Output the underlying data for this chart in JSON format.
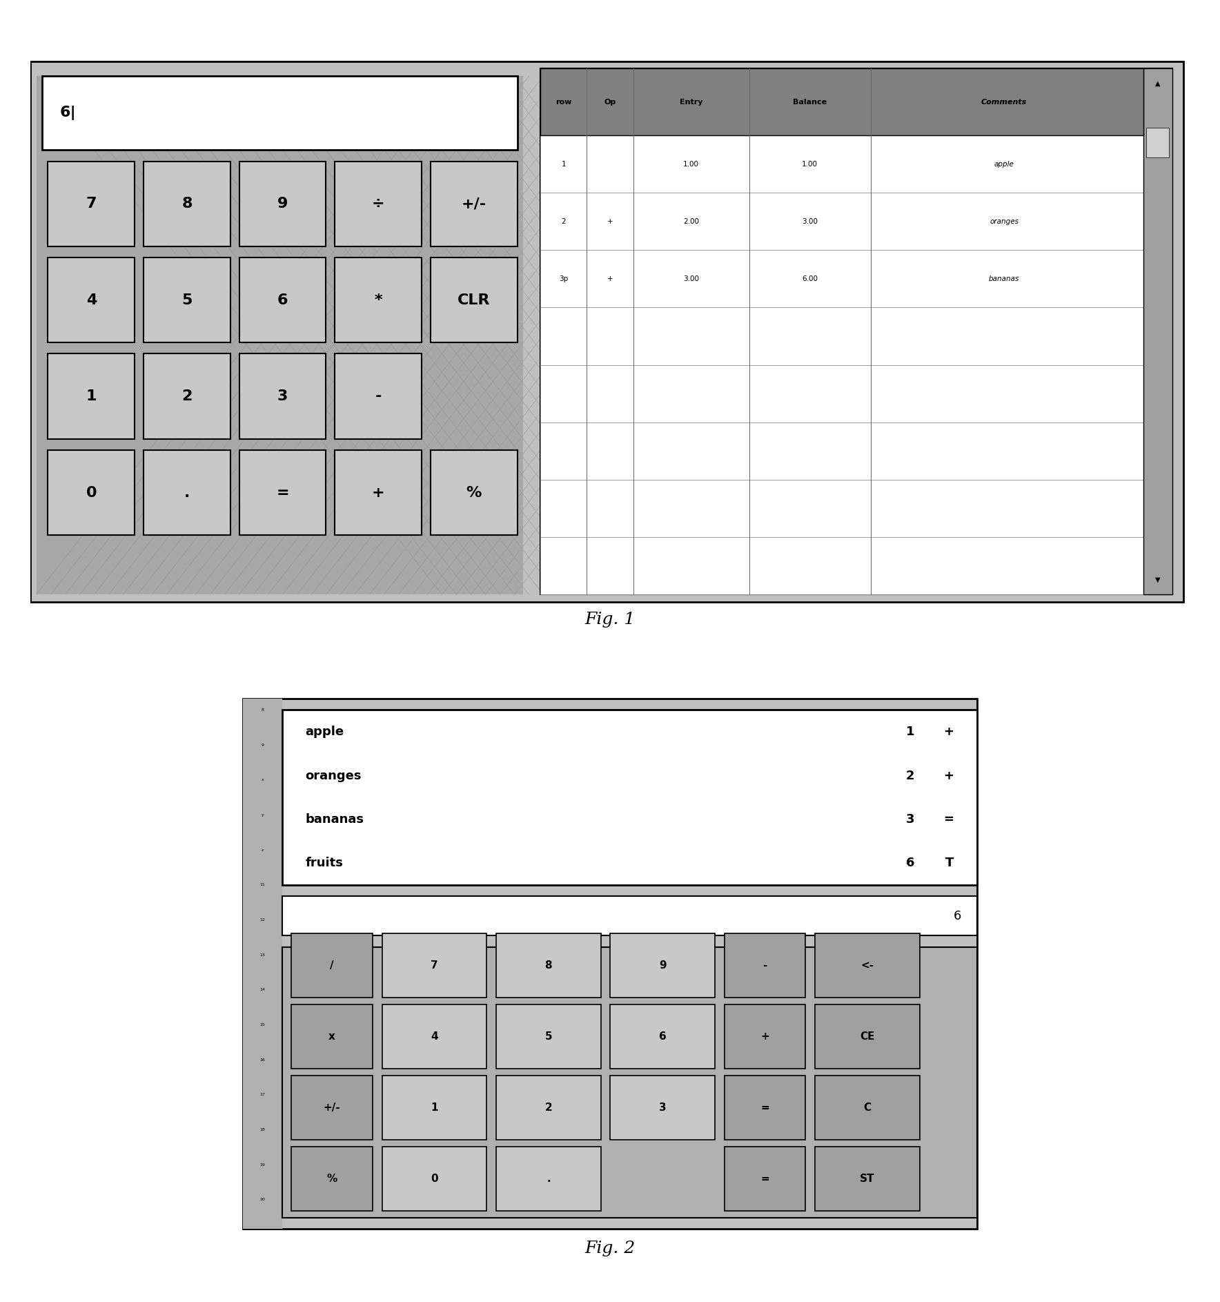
{
  "fig1": {
    "bg_color": "#c0c0c0",
    "display_value": "6|",
    "calc_buttons": [
      [
        "7",
        "8",
        "9",
        "÷",
        "+/-"
      ],
      [
        "4",
        "5",
        "6",
        "*",
        "CLR"
      ],
      [
        "1",
        "2",
        "3",
        "-",
        ""
      ],
      [
        "0",
        ".",
        "=",
        "+",
        "%"
      ]
    ],
    "table_headers": [
      "row",
      "Op",
      "Entry",
      "Balance",
      "Comments"
    ],
    "table_data": [
      [
        "1",
        "",
        "1.00",
        "1.00",
        "apple"
      ],
      [
        "2",
        "+",
        "2.00",
        "3.00",
        "oranges"
      ],
      [
        "3p",
        "+",
        "3.00",
        "6.00",
        "bananas"
      ],
      [
        "",
        "",
        "",
        "",
        ""
      ],
      [
        "",
        "",
        "",
        "",
        ""
      ],
      [
        "",
        "",
        "",
        "",
        ""
      ],
      [
        "",
        "",
        "",
        "",
        ""
      ],
      [
        "",
        "",
        "",
        "",
        ""
      ]
    ]
  },
  "fig2": {
    "bg_color": "#c0c0c0",
    "spreadsheet_items": [
      [
        "apple",
        "1",
        "+"
      ],
      [
        "oranges",
        "2",
        "+"
      ],
      [
        "bananas",
        "3",
        "="
      ],
      [
        "fruits",
        "6",
        "T"
      ]
    ],
    "display_value": "6",
    "calc_buttons_row0": [
      "/",
      "7",
      "8",
      "9",
      "-",
      "<-"
    ],
    "calc_buttons_row1": [
      "x",
      "4",
      "5",
      "6",
      "+",
      "CE"
    ],
    "calc_buttons_row2": [
      "+/-",
      "1",
      "2",
      "3",
      "=",
      "C"
    ],
    "calc_buttons_row3": [
      "%",
      "0",
      ".",
      "",
      "=",
      "ST"
    ],
    "sidebar_labels": [
      "8",
      "9",
      "x",
      "y",
      "z",
      "11",
      "12",
      "13",
      "14",
      "15",
      "16",
      "17",
      "18",
      "19",
      "20"
    ]
  },
  "fig1_label": "Fig. 1",
  "fig2_label": "Fig. 2",
  "page_bg": "#ffffff"
}
